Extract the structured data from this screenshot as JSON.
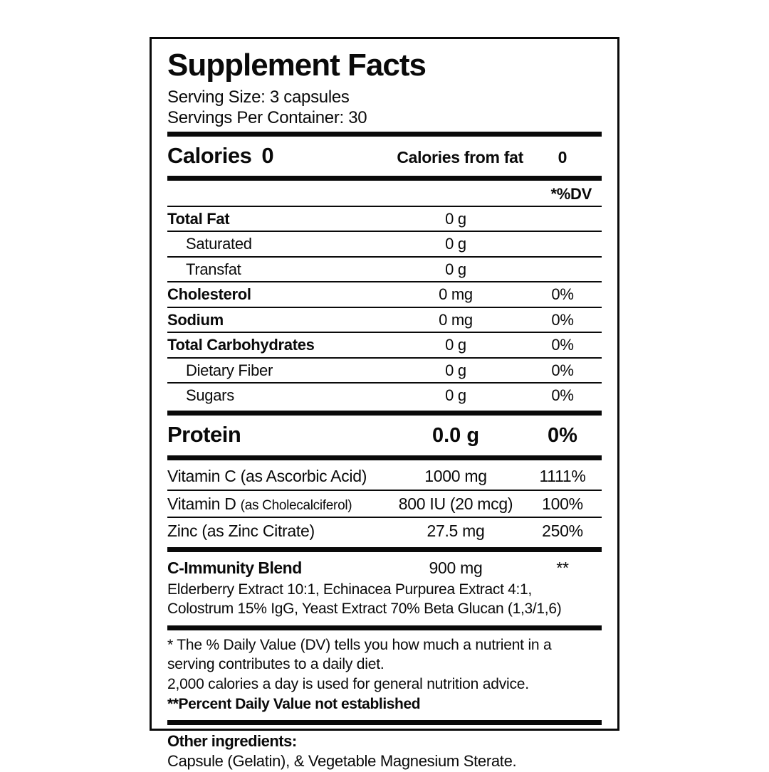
{
  "label": {
    "title": "Supplement Facts",
    "serving_size": "Serving Size: 3 capsules",
    "servings_per_container": "Servings Per Container: 30",
    "calories": {
      "label": "Calories",
      "value": "0",
      "from_fat_label": "Calories from fat",
      "from_fat_value": "0"
    },
    "dv_header": "*%DV",
    "nutrient_rows": [
      {
        "name": "Total Fat",
        "amount": "0 g",
        "dv": ""
      },
      {
        "name": "Saturated",
        "amount": "0 g",
        "dv": ""
      },
      {
        "name": "Transfat",
        "amount": "0 g",
        "dv": ""
      },
      {
        "name": "Cholesterol",
        "amount": "0 mg",
        "dv": "0%"
      },
      {
        "name": "Sodium",
        "amount": "0 mg",
        "dv": "0%"
      },
      {
        "name": "Total Carbohydrates",
        "amount": "0 g",
        "dv": "0%"
      },
      {
        "name": "Dietary Fiber",
        "amount": "0 g",
        "dv": "0%"
      },
      {
        "name": "Sugars",
        "amount": "0 g",
        "dv": "0%"
      }
    ],
    "protein": {
      "label": "Protein",
      "amount": "0.0 g",
      "dv": "0%"
    },
    "vitamin_rows": [
      {
        "name": "Vitamin C",
        "form": "(as Ascorbic Acid)",
        "amount": "1000 mg",
        "dv": "1111%"
      },
      {
        "name": "Vitamin D",
        "form": "(as Cholecalciferol)",
        "amount": "800 IU (20 mcg)",
        "dv": "100%"
      },
      {
        "name": "Zinc",
        "form": "(as Zinc Citrate)",
        "amount": "27.5 mg",
        "dv": "250%"
      }
    ],
    "blend": {
      "name": "C-Immunity Blend",
      "amount": "900 mg",
      "dv": "**",
      "ingredients_line1": "Elderberry Extract 10:1, Echinacea Purpurea Extract 4:1,",
      "ingredients_line2": "Colostrum 15% IgG, Yeast Extract 70% Beta Glucan (1,3/1,6)"
    },
    "footnotes": {
      "dv_note_line1": "* The % Daily Value (DV) tells you how much a nutrient in a",
      "dv_note_line2": "serving contributes to a daily diet.",
      "calorie_note": "2,000 calories a day is used for general nutrition advice.",
      "not_established": "**Percent Daily Value not established"
    },
    "other_ingredients": {
      "label": "Other ingredients:",
      "value": "Capsule (Gelatin), & Vegetable Magnesium Sterate."
    }
  }
}
